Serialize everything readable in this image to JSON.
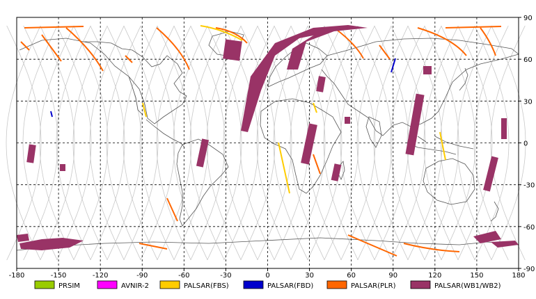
{
  "map": {
    "lon_range": [
      -180,
      180
    ],
    "lat_range": [
      -90,
      90
    ],
    "x_ticks": [
      "-180",
      "-150",
      "-120",
      "-90",
      "-60",
      "-30",
      "0",
      "30",
      "60",
      "90",
      "120",
      "150",
      "180"
    ],
    "y_ticks": [
      "90",
      "60",
      "30",
      "0",
      "-30",
      "-60",
      "-90"
    ],
    "grid": "dashed",
    "background": "#ffffff"
  },
  "legend": {
    "items": [
      {
        "label": "PRSIM",
        "color": "#99cc00"
      },
      {
        "label": "AVNIR-2",
        "color": "#ff00ff"
      },
      {
        "label": "PALSAR(FBS)",
        "color": "#ffcc00"
      },
      {
        "label": "PALSAR(FBD)",
        "color": "#0000cc"
      },
      {
        "label": "PALSAR(PLR)",
        "color": "#ff6600"
      },
      {
        "label": "PALSAR(WB1/WB2)",
        "color": "#993366"
      }
    ]
  },
  "colors": {
    "coast": "#555555",
    "orbit": "#c8c8c8",
    "grid": "#000000",
    "wb": "#993366",
    "plr": "#ff6600",
    "fbs": "#ffcc00",
    "fbd": "#0000cc"
  }
}
